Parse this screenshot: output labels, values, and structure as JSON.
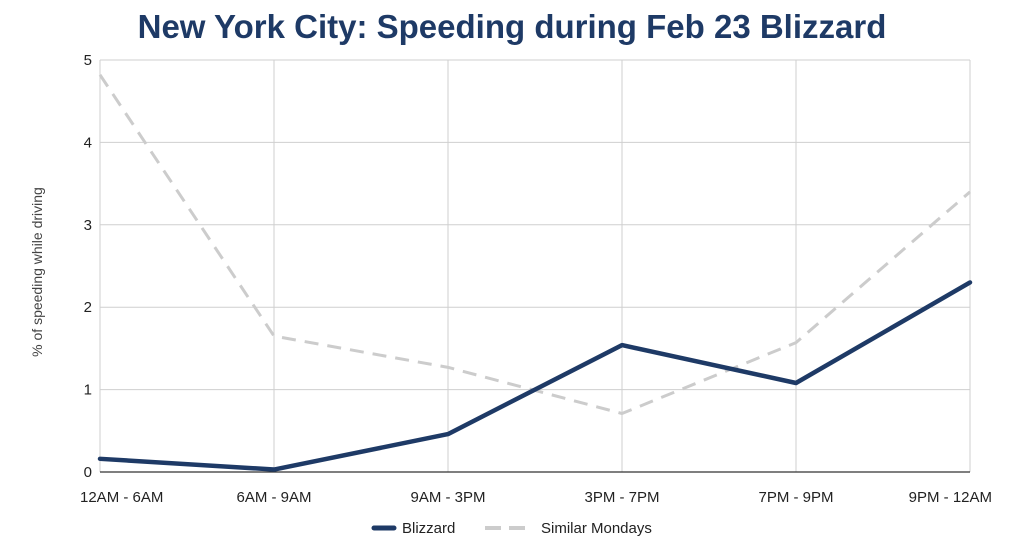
{
  "chart_data": {
    "type": "line",
    "title": "New York City: Speeding during Feb 23 Blizzard",
    "xlabel": "",
    "ylabel": "% of speeding while driving",
    "categories": [
      "12AM - 6AM",
      "6AM - 9AM",
      "9AM - 3PM",
      "3PM - 7PM",
      "7PM - 9PM",
      "9PM - 12AM"
    ],
    "series": [
      {
        "name": "Blizzard",
        "values": [
          0.16,
          0.03,
          0.46,
          1.54,
          1.08,
          2.3
        ],
        "color": "#1e3a66",
        "dashed": false
      },
      {
        "name": "Similar Mondays",
        "values": [
          4.82,
          1.65,
          1.27,
          0.71,
          1.57,
          3.4
        ],
        "color": "#cccccc",
        "dashed": true
      }
    ],
    "ylim": [
      0,
      5
    ],
    "yticks": [
      "0",
      "1",
      "2",
      "3",
      "4",
      "5"
    ],
    "grid": true,
    "legend": "bottom"
  }
}
